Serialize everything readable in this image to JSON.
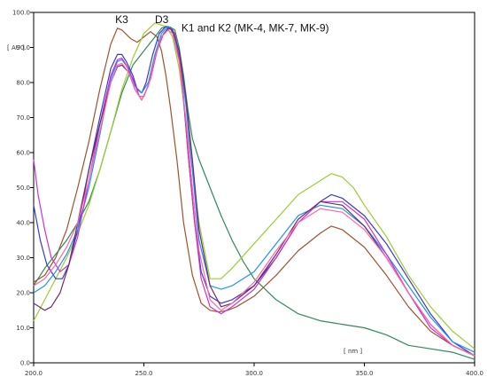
{
  "chart_data": {
    "type": "line",
    "title": "",
    "xlabel": "",
    "ylabel": "",
    "x_unit_label": "[ nm ]",
    "y_unit_label": "[ AU ]",
    "xlim": [
      200,
      400
    ],
    "ylim": [
      0,
      100
    ],
    "x_ticks": [
      "200.0",
      "250.0",
      "300.0",
      "350.0",
      "400.0"
    ],
    "y_ticks": [
      "0.0",
      "10.0",
      "20.0",
      "30.0",
      "40.0",
      "50.0",
      "60.0",
      "70.0",
      "80.0",
      "90.0",
      "100.0"
    ],
    "grid": false,
    "legend": "none",
    "annotations": [
      {
        "text": "K3",
        "x": 237,
        "y": 97
      },
      {
        "text": "D3",
        "x": 255,
        "y": 97
      },
      {
        "text": "K1 and K2 (MK-4, MK-7, MK-9)",
        "x": 267,
        "y": 94.5
      }
    ],
    "series": [
      {
        "color": "#a0522d",
        "x": [
          200,
          205,
          210,
          215,
          220,
          225,
          230,
          235,
          238,
          240,
          244,
          247,
          250,
          253,
          256,
          258,
          260,
          262,
          265,
          268,
          272,
          276,
          280,
          284,
          288,
          292,
          300,
          310,
          320,
          330,
          335,
          340,
          350,
          360,
          370,
          380,
          390,
          400
        ],
        "y": [
          23,
          25,
          30,
          38,
          50,
          63,
          78,
          91,
          95.5,
          95,
          92.5,
          91.5,
          93,
          94.5,
          93,
          89,
          82,
          73,
          58,
          40,
          25,
          17,
          15,
          14.5,
          15,
          16,
          19,
          25,
          32,
          37,
          39,
          38,
          33,
          25,
          16,
          9,
          5,
          2
        ]
      },
      {
        "color": "#2e8b57",
        "x": [
          200,
          205,
          210,
          215,
          220,
          225,
          230,
          235,
          240,
          245,
          250,
          255,
          258,
          260,
          262,
          264,
          266,
          268,
          270,
          272,
          275,
          280,
          285,
          290,
          295,
          300,
          310,
          320,
          330,
          340,
          350,
          360,
          370,
          380,
          390,
          400
        ],
        "y": [
          22,
          27,
          31,
          35,
          40,
          46,
          55,
          66,
          77,
          85,
          89,
          93,
          95.5,
          96,
          95.8,
          95,
          90,
          82,
          72,
          64,
          58,
          50,
          42,
          35,
          29,
          24,
          18,
          14,
          12,
          11,
          10,
          8,
          5,
          4,
          3,
          1
        ]
      },
      {
        "color": "#9acd32",
        "x": [
          200,
          205,
          210,
          215,
          220,
          225,
          230,
          235,
          240,
          245,
          250,
          255,
          260,
          263,
          266,
          270,
          275,
          280,
          285,
          290,
          300,
          310,
          320,
          330,
          335,
          340,
          345,
          350,
          360,
          370,
          380,
          390,
          400
        ],
        "y": [
          12,
          18,
          24,
          30,
          37,
          45,
          55,
          66,
          78,
          87,
          94,
          97,
          96,
          93,
          84,
          65,
          40,
          24,
          24,
          27,
          34,
          41,
          48,
          52,
          54,
          53,
          50,
          45,
          36,
          25,
          16,
          9,
          4
        ]
      },
      {
        "color": "#3a3ac8",
        "x": [
          200,
          203,
          206,
          210,
          213,
          216,
          220,
          225,
          230,
          235,
          238,
          240,
          242,
          245,
          247,
          249,
          251,
          254,
          257,
          260,
          262,
          264,
          266,
          268,
          270,
          273,
          276,
          280,
          285,
          290,
          300,
          310,
          320,
          330,
          335,
          340,
          350,
          360,
          370,
          380,
          390,
          400
        ],
        "y": [
          45,
          35,
          28,
          24,
          24,
          28,
          38,
          55,
          70,
          84,
          88,
          88,
          86,
          82,
          78,
          77,
          80,
          88,
          94,
          96,
          95.5,
          93,
          87,
          75,
          60,
          40,
          26,
          19,
          17,
          18,
          22,
          30,
          40,
          46,
          48,
          47,
          42,
          34,
          24,
          14,
          6,
          2
        ]
      },
      {
        "color": "#1e90ff",
        "x": [
          200,
          205,
          210,
          215,
          220,
          225,
          230,
          235,
          238,
          240,
          243,
          246,
          249,
          252,
          255,
          258,
          261,
          263,
          266,
          269,
          272,
          275,
          280,
          285,
          290,
          300,
          310,
          320,
          330,
          340,
          350,
          360,
          370,
          380,
          390,
          400
        ],
        "y": [
          20,
          22,
          26,
          31,
          38,
          50,
          65,
          81,
          86,
          86.5,
          84,
          79,
          77,
          80,
          88,
          94,
          96,
          95,
          88,
          74,
          55,
          35,
          22,
          21,
          22,
          26,
          34,
          42,
          45,
          44,
          39,
          31,
          22,
          13,
          6,
          3
        ]
      },
      {
        "color": "#cc33cc",
        "x": [
          200,
          202,
          205,
          208,
          212,
          216,
          220,
          225,
          230,
          235,
          238,
          240,
          242,
          245,
          248,
          250,
          253,
          256,
          259,
          262,
          264,
          266,
          268,
          270,
          273,
          276,
          280,
          285,
          290,
          300,
          310,
          320,
          330,
          340,
          350,
          360,
          370,
          380,
          390,
          400
        ],
        "y": [
          58,
          48,
          38,
          30,
          26,
          28,
          36,
          52,
          68,
          82,
          86.5,
          87,
          85,
          81,
          76,
          76,
          81,
          89,
          94,
          95.5,
          94,
          88,
          76,
          60,
          40,
          24,
          16,
          14,
          16,
          21,
          30,
          40,
          46,
          46,
          41,
          31,
          20,
          10,
          5,
          2
        ]
      },
      {
        "color": "#6b2d6b",
        "x": [
          200,
          205,
          208,
          212,
          216,
          220,
          225,
          230,
          235,
          238,
          240,
          243,
          246,
          249,
          252,
          255,
          258,
          261,
          263,
          266,
          269,
          272,
          275,
          280,
          285,
          290,
          300,
          310,
          320,
          330,
          340,
          350,
          360,
          370,
          380,
          390,
          400
        ],
        "y": [
          17,
          15,
          16,
          20,
          28,
          40,
          55,
          68,
          80,
          84.5,
          85,
          83,
          78,
          75,
          79,
          87,
          93,
          95.5,
          95,
          89,
          76,
          58,
          38,
          22,
          16,
          17,
          22,
          31,
          41,
          46,
          45,
          39,
          30,
          20,
          11,
          5,
          2
        ]
      },
      {
        "color": "#ff66aa",
        "x": [
          200,
          205,
          210,
          215,
          220,
          225,
          230,
          235,
          238,
          240,
          243,
          246,
          249,
          252,
          255,
          258,
          261,
          263,
          266,
          269,
          272,
          275,
          280,
          285,
          290,
          300,
          310,
          320,
          330,
          340,
          350,
          360,
          370,
          380,
          390,
          400
        ],
        "y": [
          22,
          24,
          28,
          33,
          40,
          52,
          66,
          80,
          85,
          85.5,
          83,
          78,
          75,
          79,
          87,
          93,
          95,
          94,
          86,
          70,
          50,
          32,
          18,
          15,
          17,
          23,
          32,
          40,
          44,
          43,
          38,
          30,
          20,
          11,
          5,
          2
        ]
      }
    ]
  }
}
